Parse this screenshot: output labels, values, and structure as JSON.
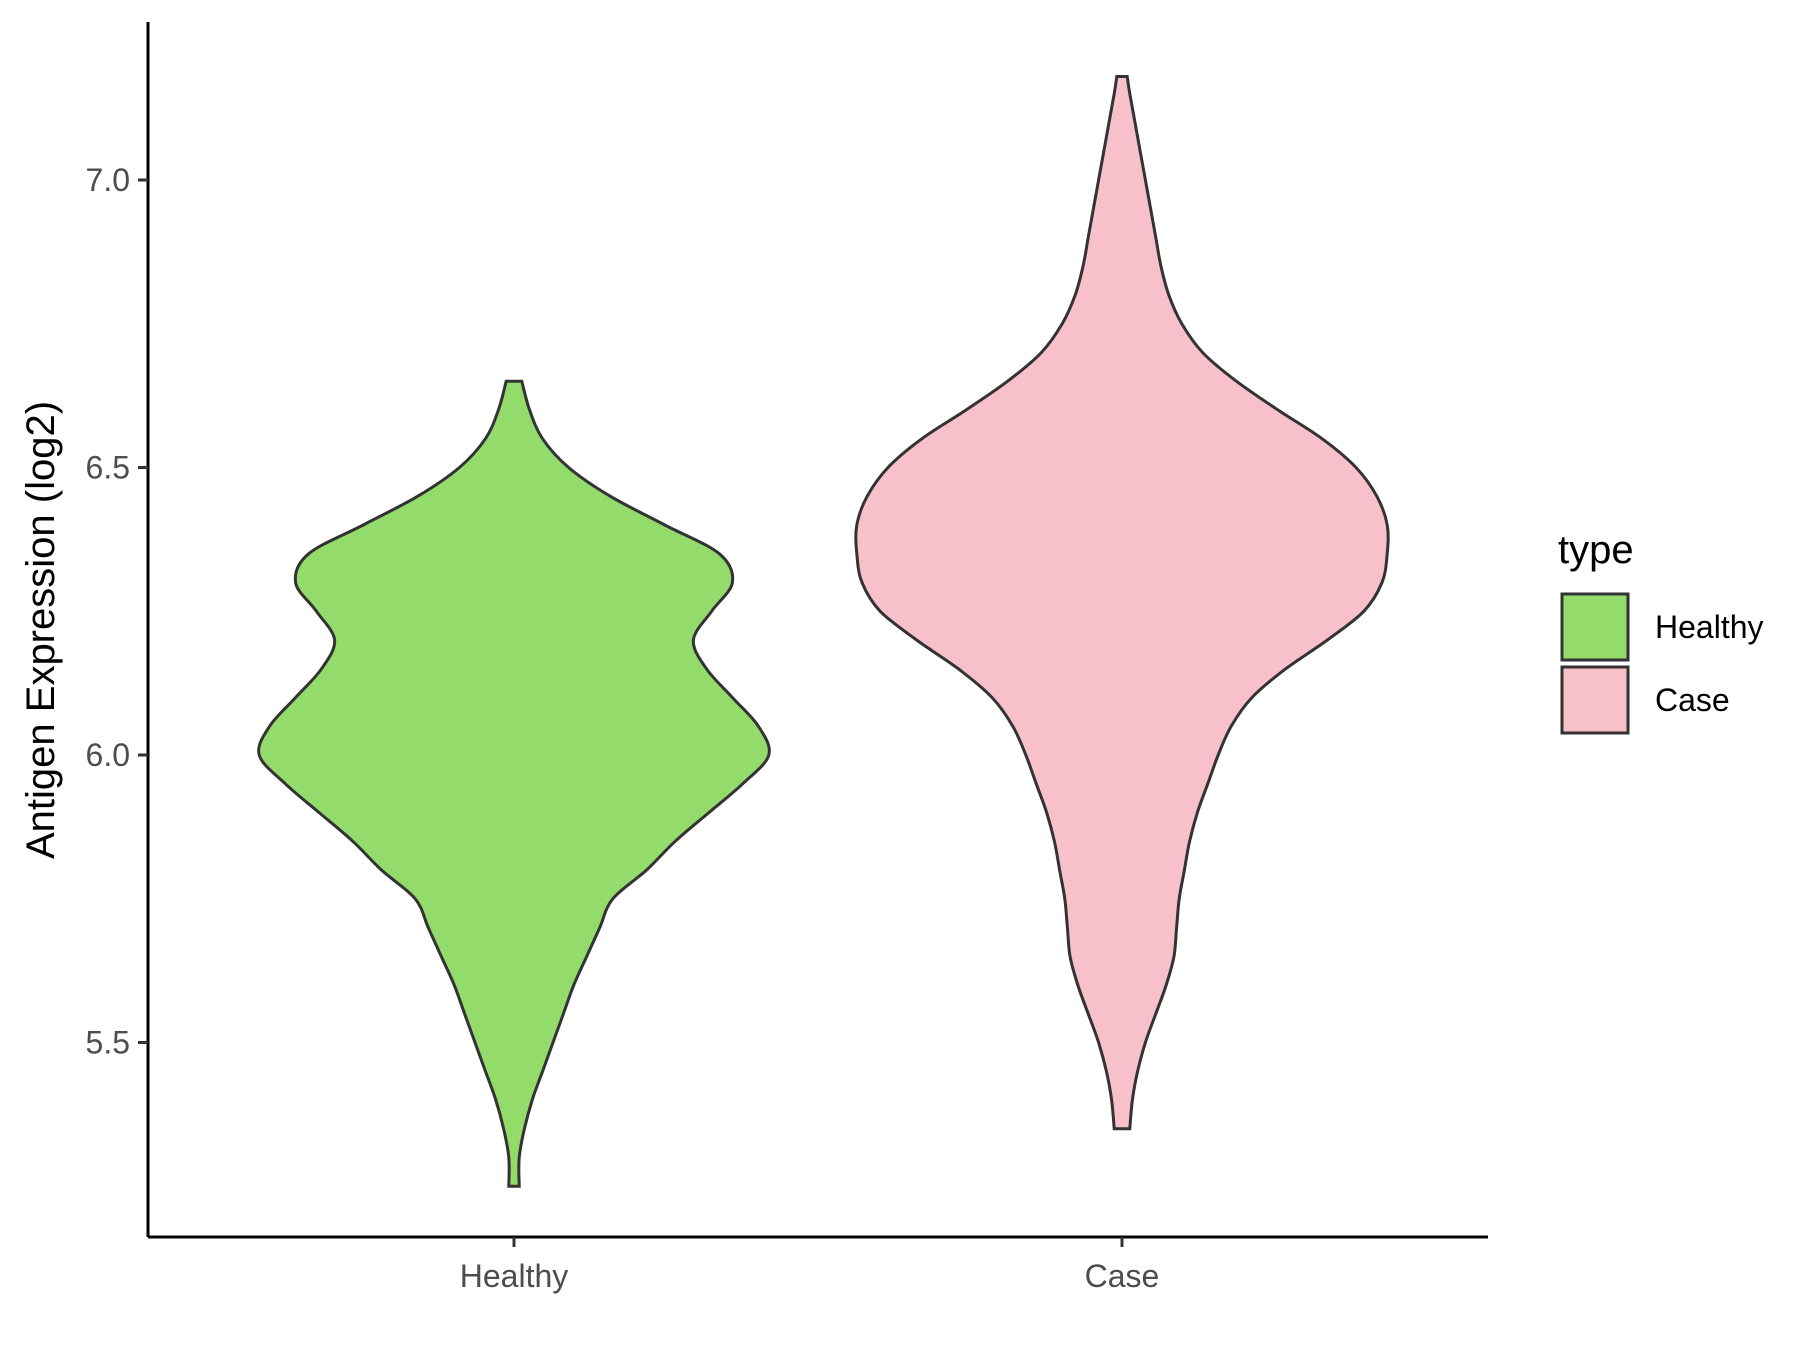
{
  "chart_data": {
    "type": "violin",
    "xlabel": "",
    "ylabel": "Antigen Expression (log2)",
    "ylim": [
      5.17,
      7.29
    ],
    "yticks": [
      "5.5",
      "6.0",
      "6.5",
      "7.0"
    ],
    "categories": [
      "Healthy",
      "Case"
    ],
    "legend": {
      "title": "type",
      "position": "right",
      "items": [
        "Healthy",
        "Case"
      ]
    },
    "grid": false,
    "series": [
      {
        "name": "Healthy",
        "color": "#93DC6B",
        "min": 5.25,
        "max": 6.65,
        "density_profile": [
          [
            5.25,
            0.02
          ],
          [
            5.3,
            0.02
          ],
          [
            5.35,
            0.04
          ],
          [
            5.4,
            0.07
          ],
          [
            5.45,
            0.11
          ],
          [
            5.5,
            0.15
          ],
          [
            5.55,
            0.19
          ],
          [
            5.6,
            0.23
          ],
          [
            5.65,
            0.28
          ],
          [
            5.7,
            0.33
          ],
          [
            5.75,
            0.38
          ],
          [
            5.8,
            0.51
          ],
          [
            5.85,
            0.62
          ],
          [
            5.9,
            0.75
          ],
          [
            5.95,
            0.88
          ],
          [
            6.0,
            0.98
          ],
          [
            6.05,
            0.94
          ],
          [
            6.1,
            0.84
          ],
          [
            6.15,
            0.74
          ],
          [
            6.2,
            0.69
          ],
          [
            6.25,
            0.76
          ],
          [
            6.3,
            0.84
          ],
          [
            6.35,
            0.79
          ],
          [
            6.4,
            0.58
          ],
          [
            6.45,
            0.37
          ],
          [
            6.5,
            0.21
          ],
          [
            6.55,
            0.11
          ],
          [
            6.6,
            0.06
          ],
          [
            6.65,
            0.03
          ]
        ]
      },
      {
        "name": "Case",
        "color": "#F8C0CB",
        "min": 5.35,
        "max": 7.18,
        "density_profile": [
          [
            5.35,
            0.03
          ],
          [
            5.4,
            0.04
          ],
          [
            5.45,
            0.06
          ],
          [
            5.5,
            0.09
          ],
          [
            5.55,
            0.13
          ],
          [
            5.6,
            0.17
          ],
          [
            5.65,
            0.2
          ],
          [
            5.7,
            0.21
          ],
          [
            5.75,
            0.22
          ],
          [
            5.8,
            0.24
          ],
          [
            5.85,
            0.26
          ],
          [
            5.9,
            0.29
          ],
          [
            5.95,
            0.33
          ],
          [
            6.0,
            0.37
          ],
          [
            6.05,
            0.42
          ],
          [
            6.1,
            0.5
          ],
          [
            6.15,
            0.63
          ],
          [
            6.2,
            0.79
          ],
          [
            6.25,
            0.93
          ],
          [
            6.3,
            1.0
          ],
          [
            6.35,
            1.02
          ],
          [
            6.4,
            1.02
          ],
          [
            6.45,
            0.98
          ],
          [
            6.5,
            0.9
          ],
          [
            6.55,
            0.77
          ],
          [
            6.6,
            0.6
          ],
          [
            6.65,
            0.44
          ],
          [
            6.7,
            0.31
          ],
          [
            6.75,
            0.23
          ],
          [
            6.8,
            0.18
          ],
          [
            6.85,
            0.15
          ],
          [
            6.9,
            0.13
          ],
          [
            6.95,
            0.11
          ],
          [
            7.0,
            0.09
          ],
          [
            7.05,
            0.07
          ],
          [
            7.1,
            0.05
          ],
          [
            7.15,
            0.03
          ],
          [
            7.18,
            0.02
          ]
        ]
      }
    ]
  }
}
